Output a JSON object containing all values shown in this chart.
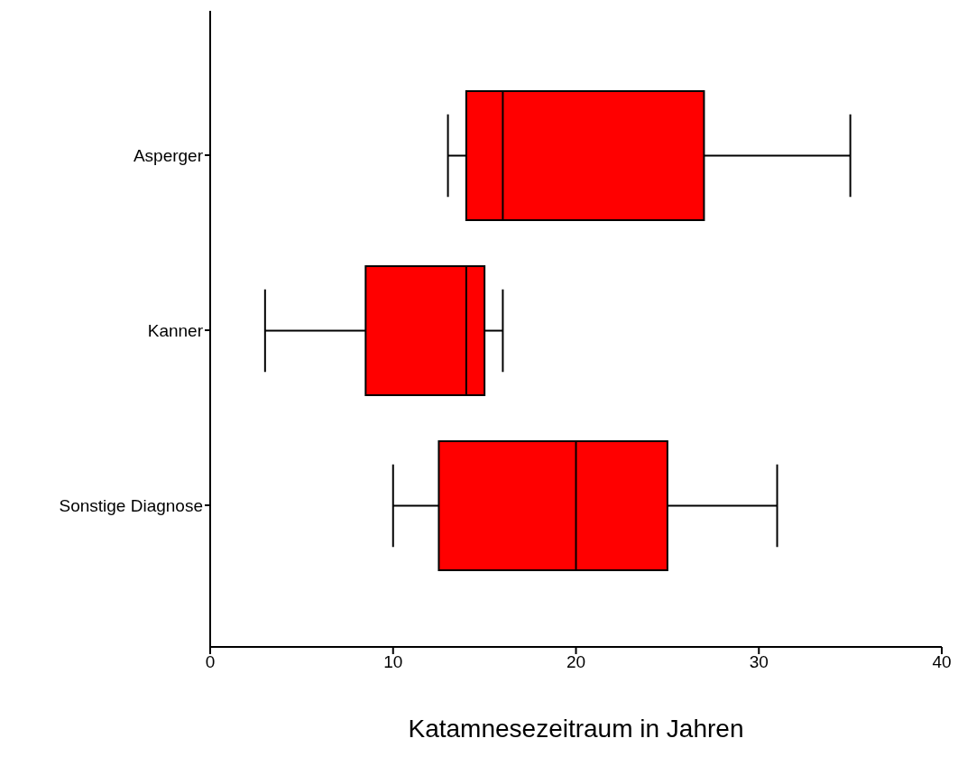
{
  "chart_data": {
    "type": "box",
    "orientation": "horizontal",
    "xlabel": "Katamnesezeitraum in Jahren",
    "categories": [
      "Asperger",
      "Kanner",
      "Sonstige Diagnose"
    ],
    "color": "#ff0000",
    "xlim": [
      0,
      40
    ],
    "xticks": [
      0,
      10,
      20,
      30,
      40
    ],
    "grid": false,
    "legend": false,
    "boxes": [
      {
        "low": 13,
        "q1": 14,
        "median": 16,
        "q3": 27,
        "high": 35
      },
      {
        "low": 3,
        "q1": 8.5,
        "median": 14,
        "q3": 15,
        "high": 16
      },
      {
        "low": 10,
        "q1": 12.5,
        "median": 20,
        "q3": 25,
        "high": 31
      }
    ]
  }
}
